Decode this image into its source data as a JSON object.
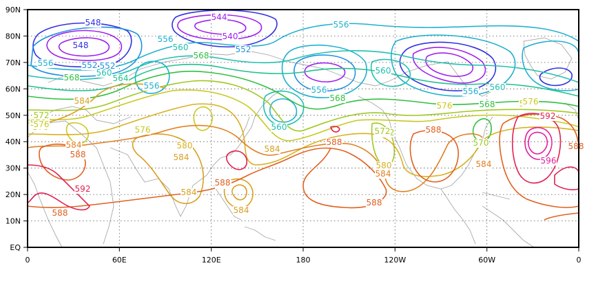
{
  "map": {
    "lat_labels": [
      "90N",
      "80N",
      "70N",
      "60N",
      "50N",
      "40N",
      "30N",
      "20N",
      "10N",
      "EQ"
    ],
    "lon_labels": [
      "0",
      "60E",
      "120E",
      "180",
      "120W",
      "60W",
      "0"
    ],
    "contour_labels": [
      {
        "text": "548",
        "color": "#3030e0"
      },
      {
        "text": "544",
        "color": "#a020f0"
      },
      {
        "text": "540",
        "color": "#a020f0"
      },
      {
        "text": "556",
        "color": "#20b0d0"
      },
      {
        "text": "548",
        "color": "#3030e0"
      },
      {
        "text": "552",
        "color": "#2090e0"
      },
      {
        "text": "556",
        "color": "#20b0d0"
      },
      {
        "text": "560",
        "color": "#20c0b0"
      },
      {
        "text": "552",
        "color": "#2090e0"
      },
      {
        "text": "556",
        "color": "#20b0d0"
      },
      {
        "text": "556",
        "color": "#20b0d0"
      },
      {
        "text": "552",
        "color": "#2090e0"
      },
      {
        "text": "560",
        "color": "#20c0b0"
      },
      {
        "text": "564",
        "color": "#20c090"
      },
      {
        "text": "568",
        "color": "#30c040"
      },
      {
        "text": "560",
        "color": "#20c0b0"
      },
      {
        "text": "556",
        "color": "#20b0d0"
      },
      {
        "text": "560",
        "color": "#20c0b0"
      },
      {
        "text": "556",
        "color": "#20b0d0"
      },
      {
        "text": "568",
        "color": "#30c040"
      },
      {
        "text": "568",
        "color": "#30c040"
      },
      {
        "text": "568",
        "color": "#30c040"
      },
      {
        "text": "584",
        "color": "#d8a020"
      },
      {
        "text": "576",
        "color": "#c8c820"
      },
      {
        "text": "576",
        "color": "#c8c820"
      },
      {
        "text": "580",
        "color": "#d8b020"
      },
      {
        "text": "584",
        "color": "#d8a020"
      },
      {
        "text": "584",
        "color": "#d8a020"
      },
      {
        "text": "584",
        "color": "#d8a020"
      },
      {
        "text": "560",
        "color": "#20c0b0"
      },
      {
        "text": "572",
        "color": "#a0c820"
      },
      {
        "text": "576",
        "color": "#c8c820"
      },
      {
        "text": "584",
        "color": "#e08020"
      },
      {
        "text": "588",
        "color": "#e06020"
      },
      {
        "text": "588",
        "color": "#e06020"
      },
      {
        "text": "572",
        "color": "#a0c820"
      },
      {
        "text": "576",
        "color": "#c8c820"
      },
      {
        "text": "580",
        "color": "#d8b020"
      },
      {
        "text": "584",
        "color": "#e08020"
      },
      {
        "text": "588",
        "color": "#e06020"
      },
      {
        "text": "592",
        "color": "#e02050"
      },
      {
        "text": "588",
        "color": "#e06020"
      },
      {
        "text": "588",
        "color": "#e06020"
      },
      {
        "text": "584",
        "color": "#d8a020"
      },
      {
        "text": "584",
        "color": "#d8a020"
      },
      {
        "text": "588",
        "color": "#e06020"
      },
      {
        "text": "576",
        "color": "#c8c820"
      },
      {
        "text": "570",
        "color": "#a0c820"
      },
      {
        "text": "584",
        "color": "#e08020"
      },
      {
        "text": "592",
        "color": "#e02050"
      },
      {
        "text": "596",
        "color": "#e020a0"
      },
      {
        "text": "588",
        "color": "#e06020"
      },
      {
        "text": "576",
        "color": "#c8c820"
      },
      {
        "text": "572",
        "color": "#a0c820"
      },
      {
        "text": "576",
        "color": "#c8c820"
      },
      {
        "text": "588",
        "color": "#e06020"
      }
    ]
  }
}
